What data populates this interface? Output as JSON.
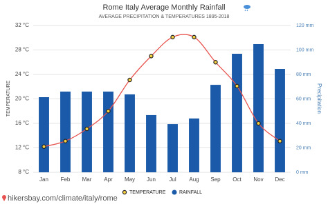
{
  "chart_data": {
    "type": "bar",
    "title": "Rome Italy Average Monthly Rainfall",
    "subtitle": "AVERAGE PRECIPITATION & TEMPERATURES 1895-2018",
    "y_label": "TEMPERATURE",
    "y2_label": "Precipitation",
    "source": "hikersbay.com/climate/italy/rome",
    "categories": [
      "Jan",
      "Feb",
      "Mar",
      "Apr",
      "May",
      "Jun",
      "Jul",
      "Aug",
      "Sep",
      "Oct",
      "Nov",
      "Dec"
    ],
    "series": [
      {
        "name": "TEMPERATURE",
        "type": "line",
        "color": "#e8534f",
        "axis": "y",
        "values": [
          12.2,
          13.1,
          15.1,
          18.0,
          23.1,
          27.0,
          30.1,
          30.1,
          26.0,
          22.1,
          16.0,
          13.1
        ]
      },
      {
        "name": "RAINFALL",
        "type": "bar",
        "color": "#1a5aa8",
        "axis": "y2",
        "values": [
          61.4,
          66.0,
          66.0,
          66.0,
          63.7,
          46.8,
          39.4,
          44.0,
          71.5,
          96.9,
          104.8,
          84.5
        ]
      }
    ],
    "ylim": [
      8,
      32
    ],
    "yticks": [
      {
        "value": 8,
        "label": "8 °C"
      },
      {
        "value": 12,
        "label": "12 °C"
      },
      {
        "value": 16,
        "label": "16 °C"
      },
      {
        "value": 20,
        "label": "20 °C"
      },
      {
        "value": 24,
        "label": "24 °C"
      },
      {
        "value": 28,
        "label": "28 °C"
      },
      {
        "value": 32,
        "label": "32 °C"
      }
    ],
    "y2lim": [
      0,
      120
    ],
    "y2ticks": [
      {
        "value": 0,
        "label": "0 mm"
      },
      {
        "value": 20,
        "label": "20 mm"
      },
      {
        "value": 40,
        "label": "40 mm"
      },
      {
        "value": 60,
        "label": "60 mm"
      },
      {
        "value": 80,
        "label": "80 mm"
      },
      {
        "value": 100,
        "label": "100 mm"
      },
      {
        "value": 120,
        "label": "120 mm"
      }
    ],
    "grid": true
  }
}
